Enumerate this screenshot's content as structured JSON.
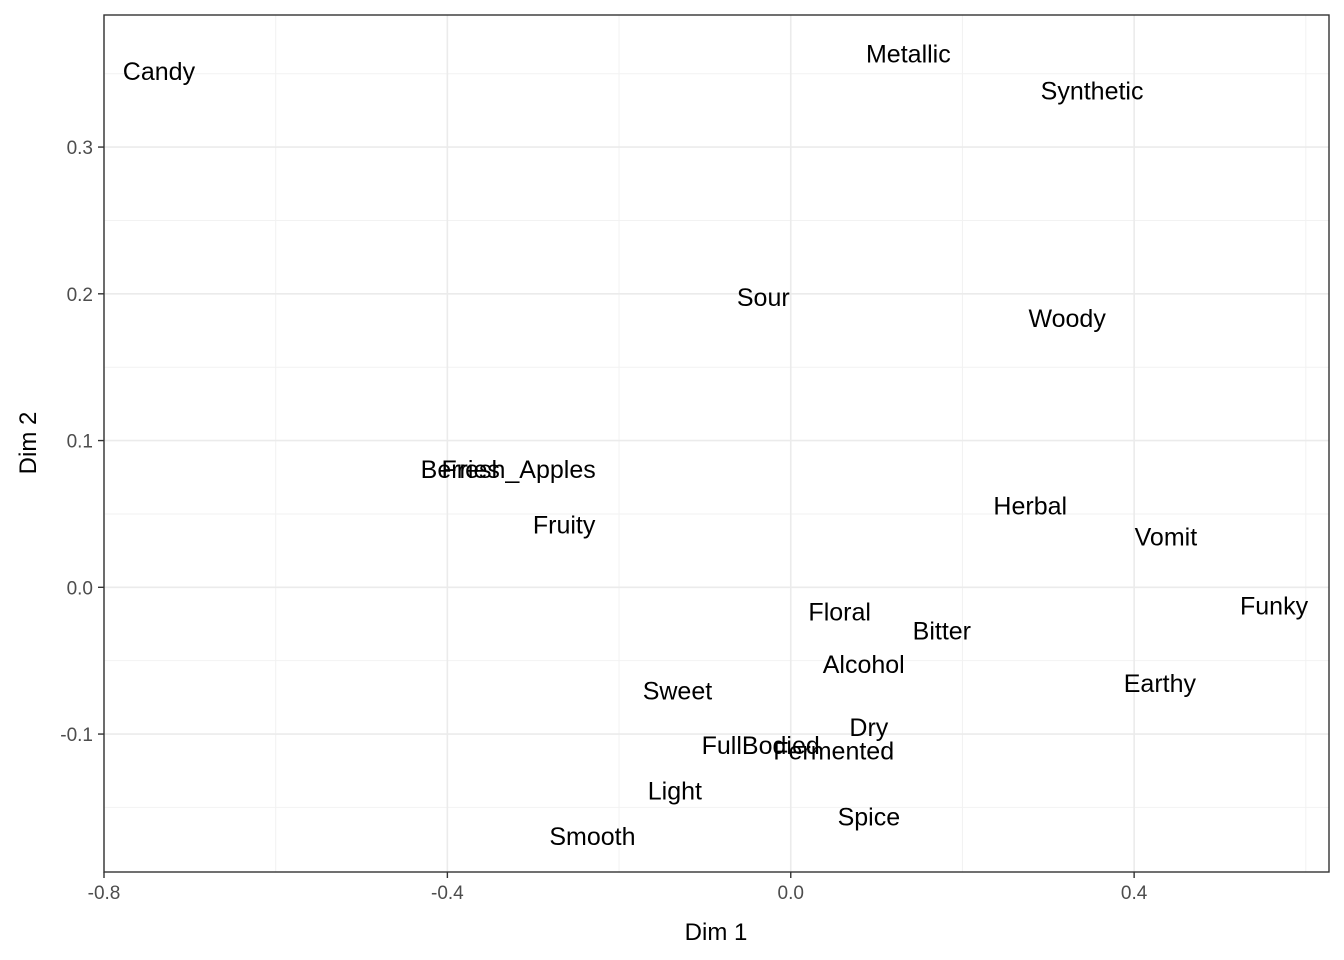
{
  "chart_data": {
    "type": "scatter",
    "title": "",
    "xlabel": "Dim 1",
    "ylabel": "Dim 2",
    "xlim": [
      -0.8,
      0.627
    ],
    "ylim": [
      -0.194,
      0.39
    ],
    "x_ticks": [
      -0.8,
      -0.4,
      0.0,
      0.4
    ],
    "x_tick_labels": [
      "-0.8",
      "-0.4",
      "0.0",
      "0.4"
    ],
    "y_ticks": [
      -0.1,
      0.0,
      0.1,
      0.2,
      0.3
    ],
    "y_tick_labels": [
      "-0.1",
      "0.0",
      "0.1",
      "0.2",
      "0.3"
    ],
    "grid": true,
    "points": [
      {
        "label": "Candy",
        "x": -0.736,
        "y": 0.351
      },
      {
        "label": "Metallic",
        "x": 0.137,
        "y": 0.363
      },
      {
        "label": "Synthetic",
        "x": 0.351,
        "y": 0.338
      },
      {
        "label": "Sour",
        "x": -0.032,
        "y": 0.197
      },
      {
        "label": "Woody",
        "x": 0.322,
        "y": 0.183
      },
      {
        "label": "Berries",
        "x": -0.385,
        "y": 0.08
      },
      {
        "label": "Fresh_Apples",
        "x": -0.317,
        "y": 0.08
      },
      {
        "label": "Fruity",
        "x": -0.264,
        "y": 0.042
      },
      {
        "label": "Herbal",
        "x": 0.279,
        "y": 0.055
      },
      {
        "label": "Vomit",
        "x": 0.437,
        "y": 0.034
      },
      {
        "label": "Funky",
        "x": 0.563,
        "y": -0.013
      },
      {
        "label": "Floral",
        "x": 0.057,
        "y": -0.017
      },
      {
        "label": "Bitter",
        "x": 0.176,
        "y": -0.03
      },
      {
        "label": "Alcohol",
        "x": 0.085,
        "y": -0.053
      },
      {
        "label": "Earthy",
        "x": 0.43,
        "y": -0.066
      },
      {
        "label": "Sweet",
        "x": -0.132,
        "y": -0.071
      },
      {
        "label": "Dry",
        "x": 0.091,
        "y": -0.096
      },
      {
        "label": "FullBodied",
        "x": -0.035,
        "y": -0.108
      },
      {
        "label": "Fermented",
        "x": 0.05,
        "y": -0.112
      },
      {
        "label": "Light",
        "x": -0.135,
        "y": -0.139
      },
      {
        "label": "Spice",
        "x": 0.091,
        "y": -0.157
      },
      {
        "label": "Smooth",
        "x": -0.231,
        "y": -0.17
      }
    ]
  }
}
